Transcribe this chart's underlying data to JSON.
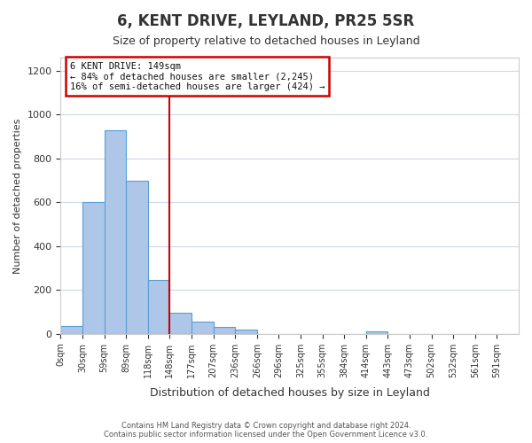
{
  "title": "6, KENT DRIVE, LEYLAND, PR25 5SR",
  "subtitle": "Size of property relative to detached houses in Leyland",
  "xlabel": "Distribution of detached houses by size in Leyland",
  "ylabel": "Number of detached properties",
  "bin_labels": [
    "0sqm",
    "30sqm",
    "59sqm",
    "89sqm",
    "118sqm",
    "148sqm",
    "177sqm",
    "207sqm",
    "236sqm",
    "266sqm",
    "296sqm",
    "325sqm",
    "355sqm",
    "384sqm",
    "414sqm",
    "443sqm",
    "473sqm",
    "502sqm",
    "532sqm",
    "561sqm",
    "591sqm"
  ],
  "bar_values": [
    35,
    600,
    930,
    700,
    245,
    95,
    55,
    30,
    18,
    0,
    0,
    0,
    0,
    0,
    12,
    0,
    0,
    0,
    0,
    0,
    0
  ],
  "bar_color": "#aec6e8",
  "bar_edge_color": "#5a9fd4",
  "ylim": [
    0,
    1260
  ],
  "yticks": [
    0,
    200,
    400,
    600,
    800,
    1000,
    1200
  ],
  "property_line_x": 5,
  "annotation_line": "6 KENT DRIVE: 149sqm",
  "annotation_smaller": "← 84% of detached houses are smaller (2,245)",
  "annotation_larger": "16% of semi-detached houses are larger (424) →",
  "annotation_box_color": "#cc0000",
  "footer_line1": "Contains HM Land Registry data © Crown copyright and database right 2024.",
  "footer_line2": "Contains public sector information licensed under the Open Government Licence v3.0.",
  "background_color": "#ffffff",
  "grid_color": "#d0d8e8"
}
